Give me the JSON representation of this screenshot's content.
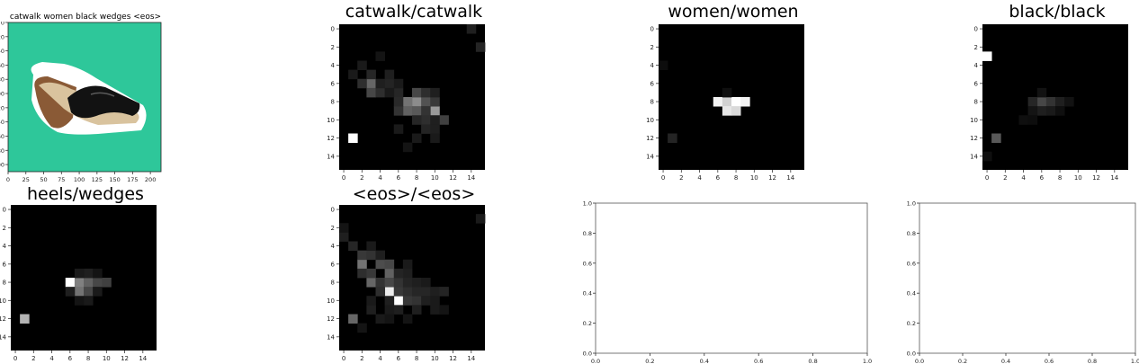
{
  "source_panel": {
    "title": "catwalk women black wedges <eos>",
    "background": "#2ec79a",
    "x_ticks": [
      "0",
      "25",
      "50",
      "75",
      "100",
      "125",
      "150",
      "175",
      "200"
    ],
    "y_ticks": [
      "0",
      "20",
      "40",
      "60",
      "80",
      "100",
      "120",
      "140",
      "160",
      "180",
      "200"
    ]
  },
  "grid_ticks": [
    "0",
    "2",
    "4",
    "6",
    "8",
    "10",
    "12",
    "14"
  ],
  "empty_ticks": [
    "0.0",
    "0.2",
    "0.4",
    "0.6",
    "0.8",
    "1.0"
  ],
  "chart_data": [
    {
      "type": "heatmap",
      "title": "catwalk/catwalk",
      "grid_size": 16,
      "xlim": [
        0,
        15
      ],
      "ylim": [
        15,
        0
      ],
      "cells": [
        [
          12,
          1,
          1.0
        ],
        [
          8,
          8,
          0.55
        ],
        [
          8,
          7,
          0.45
        ],
        [
          9,
          7,
          0.38
        ],
        [
          9,
          8,
          0.35
        ],
        [
          7,
          8,
          0.28
        ],
        [
          8,
          9,
          0.32
        ],
        [
          9,
          10,
          0.6
        ],
        [
          10,
          11,
          0.25
        ],
        [
          8,
          10,
          0.22
        ],
        [
          6,
          3,
          0.4
        ],
        [
          7,
          3,
          0.28
        ],
        [
          6,
          2,
          0.18
        ],
        [
          5,
          3,
          0.15
        ],
        [
          7,
          4,
          0.18
        ],
        [
          9,
          6,
          0.2
        ],
        [
          7,
          6,
          0.15
        ],
        [
          6,
          5,
          0.14
        ],
        [
          5,
          5,
          0.12
        ],
        [
          6,
          4,
          0.12
        ],
        [
          8,
          6,
          0.16
        ],
        [
          9,
          9,
          0.2
        ],
        [
          10,
          9,
          0.18
        ],
        [
          10,
          8,
          0.15
        ],
        [
          11,
          9,
          0.14
        ],
        [
          7,
          9,
          0.18
        ],
        [
          7,
          10,
          0.12
        ],
        [
          10,
          10,
          0.12
        ],
        [
          11,
          10,
          0.12
        ],
        [
          12,
          8,
          0.1
        ],
        [
          0,
          14,
          0.12
        ],
        [
          2,
          15,
          0.14
        ],
        [
          4,
          2,
          0.1
        ],
        [
          5,
          1,
          0.1
        ],
        [
          3,
          4,
          0.08
        ],
        [
          11,
          6,
          0.1
        ],
        [
          12,
          10,
          0.1
        ],
        [
          13,
          7,
          0.08
        ],
        [
          6,
          6,
          0.1
        ],
        [
          7,
          5,
          0.1
        ]
      ]
    },
    {
      "type": "heatmap",
      "title": "women/women",
      "grid_size": 16,
      "xlim": [
        0,
        15
      ],
      "ylim": [
        15,
        0
      ],
      "cells": [
        [
          8,
          6,
          0.95
        ],
        [
          8,
          7,
          0.82
        ],
        [
          8,
          8,
          1.0
        ],
        [
          8,
          9,
          0.95
        ],
        [
          9,
          7,
          0.9
        ],
        [
          9,
          8,
          0.85
        ],
        [
          12,
          1,
          0.14
        ],
        [
          4,
          0,
          0.05
        ],
        [
          7,
          7,
          0.06
        ]
      ]
    },
    {
      "type": "heatmap",
      "title": "black/black",
      "grid_size": 16,
      "xlim": [
        0,
        15
      ],
      "ylim": [
        15,
        0
      ],
      "cells": [
        [
          3,
          0,
          1.0
        ],
        [
          12,
          1,
          0.35
        ],
        [
          8,
          6,
          0.28
        ],
        [
          8,
          7,
          0.2
        ],
        [
          8,
          5,
          0.15
        ],
        [
          9,
          6,
          0.12
        ],
        [
          8,
          8,
          0.12
        ],
        [
          9,
          7,
          0.1
        ],
        [
          9,
          5,
          0.08
        ],
        [
          10,
          4,
          0.06
        ],
        [
          8,
          9,
          0.07
        ],
        [
          7,
          6,
          0.07
        ],
        [
          9,
          8,
          0.06
        ],
        [
          10,
          5,
          0.05
        ],
        [
          14,
          0,
          0.06
        ]
      ]
    },
    {
      "type": "heatmap",
      "title": "heels/wedges",
      "grid_size": 16,
      "xlim": [
        0,
        15
      ],
      "ylim": [
        15,
        0
      ],
      "cells": [
        [
          8,
          6,
          1.0
        ],
        [
          12,
          1,
          0.7
        ],
        [
          8,
          7,
          0.5
        ],
        [
          8,
          8,
          0.38
        ],
        [
          8,
          9,
          0.28
        ],
        [
          8,
          10,
          0.25
        ],
        [
          9,
          7,
          0.45
        ],
        [
          9,
          8,
          0.28
        ],
        [
          7,
          8,
          0.12
        ],
        [
          10,
          8,
          0.1
        ],
        [
          9,
          6,
          0.12
        ],
        [
          7,
          7,
          0.1
        ],
        [
          9,
          9,
          0.1
        ],
        [
          10,
          7,
          0.08
        ],
        [
          7,
          9,
          0.08
        ]
      ]
    },
    {
      "type": "heatmap",
      "title": "<eos>/<eos>",
      "grid_size": 16,
      "xlim": [
        0,
        15
      ],
      "ylim": [
        15,
        0
      ],
      "cells": [
        [
          10,
          6,
          1.0
        ],
        [
          9,
          5,
          0.92
        ],
        [
          12,
          1,
          0.4
        ],
        [
          6,
          2,
          0.45
        ],
        [
          8,
          3,
          0.4
        ],
        [
          6,
          4,
          0.3
        ],
        [
          7,
          5,
          0.38
        ],
        [
          6,
          5,
          0.28
        ],
        [
          5,
          2,
          0.22
        ],
        [
          5,
          3,
          0.2
        ],
        [
          7,
          2,
          0.18
        ],
        [
          7,
          3,
          0.22
        ],
        [
          8,
          4,
          0.2
        ],
        [
          9,
          4,
          0.18
        ],
        [
          8,
          5,
          0.28
        ],
        [
          9,
          6,
          0.22
        ],
        [
          8,
          6,
          0.2
        ],
        [
          10,
          7,
          0.22
        ],
        [
          9,
          7,
          0.18
        ],
        [
          10,
          8,
          0.2
        ],
        [
          9,
          8,
          0.15
        ],
        [
          11,
          8,
          0.12
        ],
        [
          9,
          9,
          0.15
        ],
        [
          10,
          9,
          0.12
        ],
        [
          9,
          10,
          0.12
        ],
        [
          9,
          11,
          0.14
        ],
        [
          10,
          10,
          0.1
        ],
        [
          11,
          10,
          0.1
        ],
        [
          4,
          1,
          0.15
        ],
        [
          3,
          0,
          0.12
        ],
        [
          2,
          0,
          0.08
        ],
        [
          1,
          15,
          0.1
        ],
        [
          11,
          3,
          0.12
        ],
        [
          12,
          4,
          0.1
        ],
        [
          10,
          3,
          0.1
        ],
        [
          13,
          2,
          0.08
        ],
        [
          4,
          3,
          0.1
        ],
        [
          5,
          4,
          0.12
        ],
        [
          11,
          6,
          0.12
        ],
        [
          12,
          7,
          0.08
        ],
        [
          10,
          5,
          0.12
        ],
        [
          11,
          5,
          0.1
        ],
        [
          12,
          5,
          0.08
        ],
        [
          7,
          7,
          0.12
        ],
        [
          6,
          7,
          0.1
        ],
        [
          7,
          6,
          0.14
        ],
        [
          8,
          7,
          0.14
        ],
        [
          8,
          8,
          0.12
        ],
        [
          8,
          9,
          0.1
        ],
        [
          11,
          11,
          0.08
        ]
      ]
    },
    {
      "type": "scatter",
      "title": "",
      "xlim": [
        0,
        1
      ],
      "ylim": [
        0,
        1
      ],
      "series": []
    },
    {
      "type": "scatter",
      "title": "",
      "xlim": [
        0,
        1
      ],
      "ylim": [
        0,
        1
      ],
      "series": []
    }
  ]
}
